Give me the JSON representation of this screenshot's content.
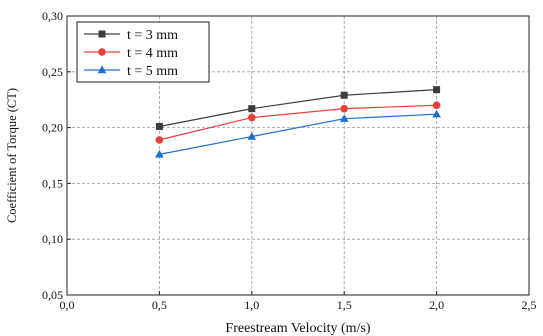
{
  "chart_data": {
    "type": "line",
    "title": "",
    "xlabel": "Freestream Velocity (m/s)",
    "ylabel": "Coefficient of Torque (CT)",
    "xlim": [
      0.0,
      2.5
    ],
    "ylim": [
      0.05,
      0.3
    ],
    "xticks": [
      "0,0",
      "0,5",
      "1,0",
      "1,5",
      "2,0",
      "2,5"
    ],
    "yticks": [
      "0,05",
      "0,10",
      "0,15",
      "0,20",
      "0,25",
      "0,30"
    ],
    "grid": true,
    "legend_position": "top-left",
    "x": [
      0.5,
      1.0,
      1.5,
      2.0
    ],
    "series": [
      {
        "name": "t = 3 mm",
        "values": [
          0.201,
          0.217,
          0.229,
          0.234
        ],
        "color": "#3d3d3d",
        "marker": "square"
      },
      {
        "name": "t = 4 mm",
        "values": [
          0.189,
          0.209,
          0.217,
          0.22
        ],
        "color": "#e8413c",
        "marker": "circle"
      },
      {
        "name": "t = 5 mm",
        "values": [
          0.176,
          0.192,
          0.208,
          0.212
        ],
        "color": "#1f6fd1",
        "marker": "triangle"
      }
    ]
  }
}
